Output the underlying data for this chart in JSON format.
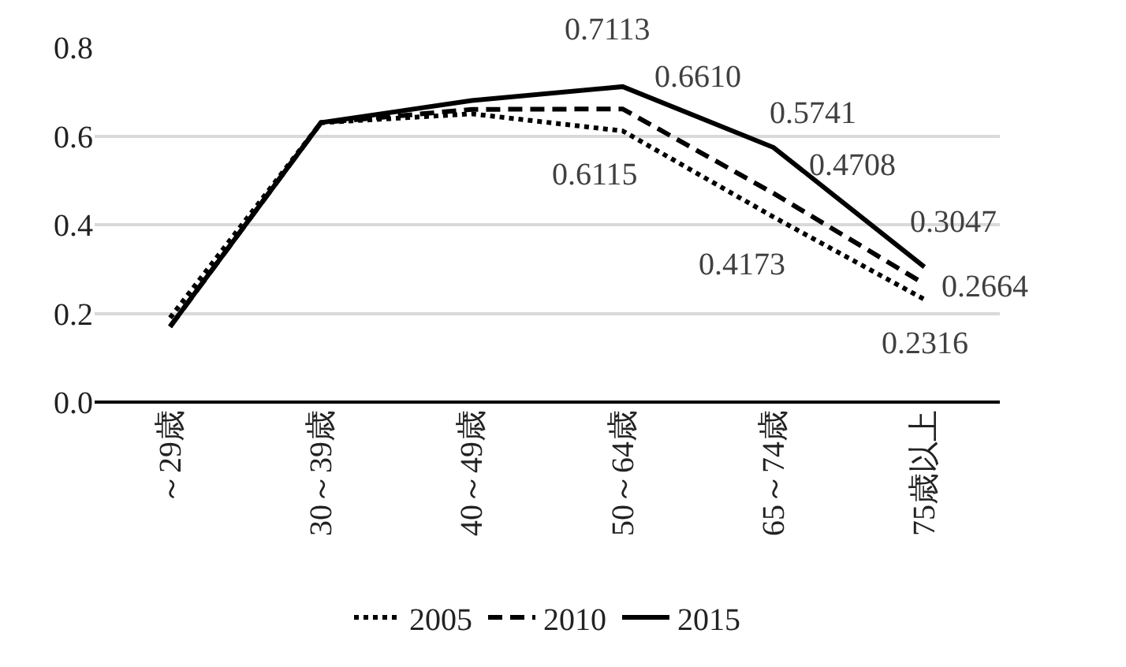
{
  "chart_data": {
    "type": "line",
    "categories": [
      "～29歳",
      "30～39歳",
      "40～49歳",
      "50～64歳",
      "65～74歳",
      "75歳以上"
    ],
    "series": [
      {
        "name": "2005",
        "color": "#000000",
        "line_style": "dotted",
        "values": [
          0.19,
          0.63,
          0.65,
          0.6115,
          0.4173,
          0.2316
        ],
        "value_labels": [
          null,
          null,
          null,
          "0.6115",
          "0.4173",
          "0.2316"
        ]
      },
      {
        "name": "2010",
        "color": "#000000",
        "line_style": "dashed",
        "values": [
          0.17,
          0.63,
          0.66,
          0.661,
          0.4708,
          0.2664
        ],
        "value_labels": [
          null,
          null,
          null,
          "0.6610",
          "0.4708",
          "0.2664"
        ]
      },
      {
        "name": "2015",
        "color": "#000000",
        "line_style": "solid",
        "values": [
          0.17,
          0.63,
          0.68,
          0.7113,
          0.5741,
          0.3047
        ],
        "value_labels": [
          null,
          null,
          null,
          "0.7113",
          "0.5741",
          "0.3047"
        ]
      }
    ],
    "ylim": [
      0,
      0.8
    ],
    "yticks": [
      {
        "value": 0,
        "label": "0.0"
      },
      {
        "value": 0.2,
        "label": "0.2"
      },
      {
        "value": 0.4,
        "label": "0.4"
      },
      {
        "value": 0.6,
        "label": "0.6"
      },
      {
        "value": 0.8,
        "label": "0.8"
      }
    ],
    "grid": "y",
    "legend": "bottom",
    "marker": "none"
  }
}
